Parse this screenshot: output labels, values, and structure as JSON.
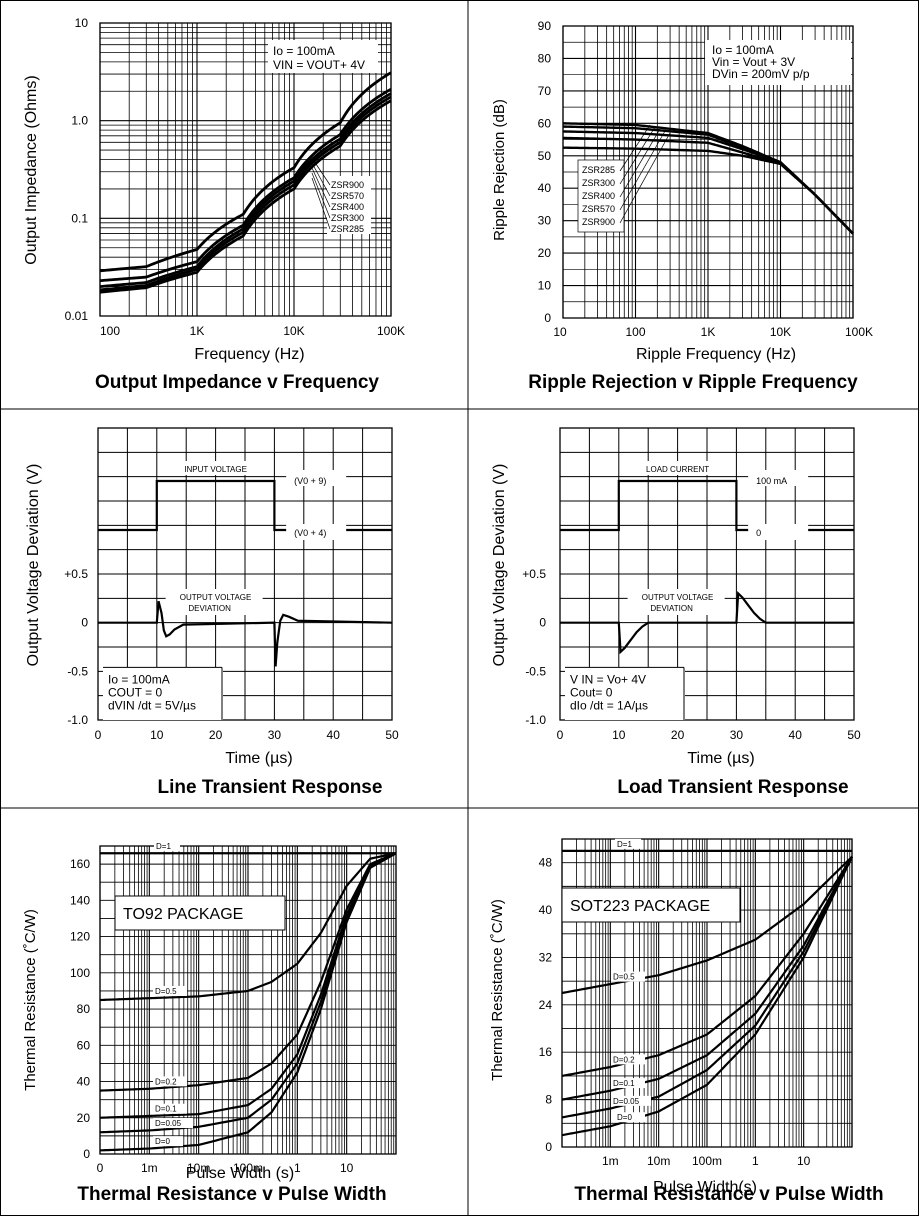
{
  "chart_data": [
    {
      "type": "line",
      "title": "Output Impedance v Frequency",
      "xlabel": "Frequency (Hz)",
      "ylabel": "Output Impedance (Ohms)",
      "x_scale": "log",
      "y_scale": "log",
      "xlim": [
        100,
        100000
      ],
      "ylim": [
        0.01,
        10
      ],
      "xticks": [
        100,
        1000,
        10000,
        100000
      ],
      "xtick_labels": [
        "100",
        "1K",
        "10K",
        "100K"
      ],
      "yticks": [
        0.01,
        0.1,
        1,
        10
      ],
      "ytick_labels": [
        "0.01",
        "0.1",
        "1.0",
        "10"
      ],
      "grid": true,
      "conditions": [
        "Io = 100mA",
        "VIN = VOUT+ 4V"
      ],
      "series": [
        {
          "name": "ZSR900",
          "x": [
            100,
            300,
            1000,
            3000,
            10000,
            30000,
            100000
          ],
          "y": [
            0.029,
            0.032,
            0.048,
            0.11,
            0.33,
            0.95,
            3.1
          ]
        },
        {
          "name": "ZSR570",
          "x": [
            100,
            300,
            1000,
            3000,
            10000,
            30000,
            100000
          ],
          "y": [
            0.023,
            0.025,
            0.036,
            0.085,
            0.26,
            0.72,
            2.1
          ]
        },
        {
          "name": "ZSR400",
          "x": [
            100,
            300,
            1000,
            3000,
            10000,
            30000,
            100000
          ],
          "y": [
            0.02,
            0.022,
            0.032,
            0.078,
            0.24,
            0.65,
            1.9
          ]
        },
        {
          "name": "ZSR300",
          "x": [
            100,
            300,
            1000,
            3000,
            10000,
            30000,
            100000
          ],
          "y": [
            0.0185,
            0.0205,
            0.03,
            0.072,
            0.22,
            0.6,
            1.75
          ]
        },
        {
          "name": "ZSR285",
          "x": [
            100,
            300,
            1000,
            3000,
            10000,
            30000,
            100000
          ],
          "y": [
            0.0175,
            0.0195,
            0.028,
            0.066,
            0.2,
            0.55,
            1.6
          ]
        }
      ]
    },
    {
      "type": "line",
      "title": "Ripple Rejection v Ripple Frequency",
      "xlabel": "Ripple Frequency (Hz)",
      "ylabel": "Ripple Rejection (dB)",
      "x_scale": "log",
      "xlim": [
        10,
        100000
      ],
      "ylim": [
        0,
        90
      ],
      "xticks": [
        10,
        100,
        1000,
        10000,
        100000
      ],
      "xtick_labels": [
        "10",
        "100",
        "1K",
        "10K",
        "100K"
      ],
      "yticks": [
        0,
        10,
        20,
        30,
        40,
        50,
        60,
        70,
        80,
        90
      ],
      "ytick_labels": [
        "0",
        "10",
        "20",
        "30",
        "40",
        "50",
        "60",
        "70",
        "80",
        "90"
      ],
      "grid": true,
      "conditions": [
        "Io = 100mA",
        "Vin = Vout + 3V",
        "DVin = 200mV p/p"
      ],
      "series": [
        {
          "name": "ZSR285",
          "x": [
            10,
            100,
            1000,
            3000,
            10000,
            30000,
            100000
          ],
          "y": [
            60,
            59.5,
            57,
            53,
            48,
            38,
            26
          ]
        },
        {
          "name": "ZSR300",
          "x": [
            10,
            100,
            1000,
            3000,
            10000,
            30000,
            100000
          ],
          "y": [
            59,
            58.5,
            56.5,
            52.5,
            48,
            38,
            26
          ]
        },
        {
          "name": "ZSR400",
          "x": [
            10,
            100,
            1000,
            3000,
            10000,
            30000,
            100000
          ],
          "y": [
            57.5,
            57,
            55.5,
            52,
            48,
            38,
            26
          ]
        },
        {
          "name": "ZSR570",
          "x": [
            10,
            100,
            1000,
            3000,
            10000,
            30000,
            100000
          ],
          "y": [
            55.5,
            55,
            54,
            51,
            47.5,
            38,
            26
          ]
        },
        {
          "name": "ZSR900",
          "x": [
            10,
            100,
            1000,
            3000,
            10000,
            30000,
            100000
          ],
          "y": [
            52.5,
            52.2,
            51.5,
            50,
            47.5,
            38,
            26
          ]
        }
      ]
    },
    {
      "type": "line",
      "title": "Line Transient Response",
      "xlabel": "Time (µs)",
      "ylabel": "Output Voltage Deviation (V)",
      "xlim": [
        0,
        50
      ],
      "ylim": [
        -1.0,
        2.0
      ],
      "xticks": [
        0,
        10,
        20,
        30,
        40,
        50
      ],
      "xtick_labels": [
        "0",
        "10",
        "20",
        "30",
        "40",
        "50"
      ],
      "yticks": [
        -1.0,
        -0.5,
        0,
        0.5
      ],
      "ytick_labels": [
        "-1.0",
        "-0.5",
        "0",
        "+0.5"
      ],
      "grid": true,
      "input_label": "INPUT VOLTAGE",
      "input_high_label": "(V0 + 9)",
      "input_low_label": "(V0 + 4)",
      "output_label": [
        "OUTPUT VOLTAGE",
        "DEVIATION"
      ],
      "conditions": [
        "Io = 100mA",
        "COUT = 0",
        "dVIN /dt = 5V/µs"
      ],
      "input_step": {
        "x": [
          0,
          10,
          10,
          30,
          30,
          50
        ],
        "level": [
          "low",
          "low",
          "high",
          "high",
          "low",
          "low"
        ]
      },
      "series": [
        {
          "x": [
            0,
            10,
            10.3,
            10.8,
            11.2,
            11.6,
            12.2,
            13,
            14.5,
            30,
            30.2,
            30.5,
            31,
            31.5,
            32.5,
            34,
            50
          ],
          "y": [
            0,
            0,
            0.22,
            0.1,
            -0.08,
            -0.14,
            -0.12,
            -0.07,
            -0.02,
            0,
            -0.45,
            -0.2,
            0.02,
            0.08,
            0.06,
            0.02,
            0
          ]
        }
      ]
    },
    {
      "type": "line",
      "title": "Load Transient Response",
      "xlabel": "Time (µs)",
      "ylabel": "Output Voltage Deviation (V)",
      "xlim": [
        0,
        50
      ],
      "ylim": [
        -1.0,
        2.0
      ],
      "xticks": [
        0,
        10,
        20,
        30,
        40,
        50
      ],
      "xtick_labels": [
        "0",
        "10",
        "20",
        "30",
        "40",
        "50"
      ],
      "yticks": [
        -1.0,
        -0.5,
        0,
        0.5
      ],
      "ytick_labels": [
        "-1.0",
        "-0.5",
        "0",
        "+0.5"
      ],
      "grid": true,
      "input_label": "LOAD CURRENT",
      "input_high_label": "100 mA",
      "input_low_label": "0",
      "output_label": [
        "OUTPUT VOLTAGE",
        "DEVIATION"
      ],
      "conditions": [
        "V IN = Vo+ 4V",
        "Cout= 0",
        "dIo /dt = 1A/µs"
      ],
      "input_step": {
        "x": [
          0,
          10,
          10,
          30,
          30,
          50
        ],
        "level": [
          "low",
          "low",
          "high",
          "high",
          "low",
          "low"
        ]
      },
      "series": [
        {
          "x": [
            0,
            10,
            10.3,
            11,
            12,
            13,
            14,
            15,
            30,
            30.3,
            31,
            32,
            33,
            34,
            35,
            50
          ],
          "y": [
            0,
            0,
            -0.3,
            -0.26,
            -0.18,
            -0.1,
            -0.04,
            0,
            0,
            0.3,
            0.26,
            0.18,
            0.1,
            0.04,
            0,
            0
          ]
        }
      ]
    },
    {
      "type": "line",
      "title": "Thermal Resistance v Pulse Width",
      "package": "TO92 PACKAGE",
      "xlabel": "Pulse Width (s)",
      "ylabel": "Thermal Resistance (˚C/W)",
      "x_scale": "log",
      "xlim": [
        0.0001,
        100
      ],
      "ylim": [
        0,
        170
      ],
      "xticks": [
        0.0001,
        0.001,
        0.01,
        0.1,
        1,
        10
      ],
      "xtick_labels": [
        "0",
        "1m",
        "10m",
        "100m",
        "1",
        "10"
      ],
      "yticks": [
        0,
        20,
        40,
        60,
        80,
        100,
        120,
        140,
        160
      ],
      "ytick_labels": [
        "0",
        "20",
        "40",
        "60",
        "80",
        "100",
        "120",
        "140",
        "160"
      ],
      "grid": true,
      "series": [
        {
          "name": "D=1",
          "x": [
            0.0001,
            100
          ],
          "y": [
            166,
            166
          ]
        },
        {
          "name": "D=0.5",
          "x": [
            0.0001,
            0.001,
            0.01,
            0.1,
            0.3,
            1,
            3,
            10,
            30,
            100
          ],
          "y": [
            85,
            86,
            87,
            90,
            95,
            105,
            122,
            148,
            163,
            166
          ]
        },
        {
          "name": "D=0.2",
          "x": [
            0.0001,
            0.001,
            0.01,
            0.1,
            0.3,
            1,
            3,
            10,
            30,
            100
          ],
          "y": [
            35,
            36,
            38,
            42,
            50,
            66,
            95,
            135,
            160,
            166
          ]
        },
        {
          "name": "D=0.1",
          "x": [
            0.0001,
            0.001,
            0.01,
            0.1,
            0.3,
            1,
            3,
            10,
            30,
            100
          ],
          "y": [
            20,
            21,
            22,
            27,
            36,
            55,
            88,
            132,
            159,
            166
          ]
        },
        {
          "name": "D=0.05",
          "x": [
            0.0001,
            0.001,
            0.01,
            0.1,
            0.3,
            1,
            3,
            10,
            30,
            100
          ],
          "y": [
            12,
            13,
            15,
            20,
            30,
            50,
            84,
            130,
            158,
            166
          ]
        },
        {
          "name": "D=0",
          "x": [
            0.0001,
            0.001,
            0.01,
            0.1,
            0.3,
            1,
            3,
            10,
            30,
            100
          ],
          "y": [
            2,
            3,
            5,
            12,
            23,
            45,
            80,
            128,
            158,
            166
          ]
        }
      ]
    },
    {
      "type": "line",
      "title": "Thermal Resistance v Pulse Width",
      "package": "SOT223 PACKAGE",
      "xlabel": "Pulse Width(s)",
      "ylabel": "Thermal Resistance (˚C/W)",
      "x_scale": "log",
      "xlim": [
        0.0001,
        100
      ],
      "ylim": [
        0,
        52
      ],
      "xticks": [
        0.001,
        0.01,
        0.1,
        1,
        10
      ],
      "xtick_labels": [
        "1m",
        "10m",
        "100m",
        "1",
        "10"
      ],
      "yticks": [
        0,
        8,
        16,
        24,
        32,
        40,
        48
      ],
      "ytick_labels": [
        "0",
        "8",
        "16",
        "24",
        "32",
        "40",
        "48"
      ],
      "grid": true,
      "series": [
        {
          "name": "D=1",
          "x": [
            0.0001,
            100
          ],
          "y": [
            50,
            50
          ]
        },
        {
          "name": "D=0.5",
          "x": [
            0.0001,
            0.001,
            0.01,
            0.1,
            1,
            10,
            100
          ],
          "y": [
            26,
            27.5,
            29,
            31.5,
            35,
            41,
            49
          ]
        },
        {
          "name": "D=0.2",
          "x": [
            0.0001,
            0.001,
            0.01,
            0.1,
            1,
            10,
            100
          ],
          "y": [
            12,
            13.5,
            15.5,
            19,
            25.5,
            36,
            49
          ]
        },
        {
          "name": "D=0.1",
          "x": [
            0.0001,
            0.001,
            0.01,
            0.1,
            1,
            10,
            100
          ],
          "y": [
            8,
            9.5,
            11.5,
            15.5,
            22.5,
            34,
            49
          ]
        },
        {
          "name": "D=0.05",
          "x": [
            0.0001,
            0.001,
            0.01,
            0.1,
            1,
            10,
            100
          ],
          "y": [
            5,
            6.5,
            8.5,
            13,
            20.5,
            33,
            49
          ]
        },
        {
          "name": "D=0",
          "x": [
            0.0001,
            0.001,
            0.01,
            0.1,
            1,
            10,
            100
          ],
          "y": [
            2,
            3.5,
            6,
            10.5,
            19,
            32,
            49
          ]
        }
      ]
    }
  ]
}
